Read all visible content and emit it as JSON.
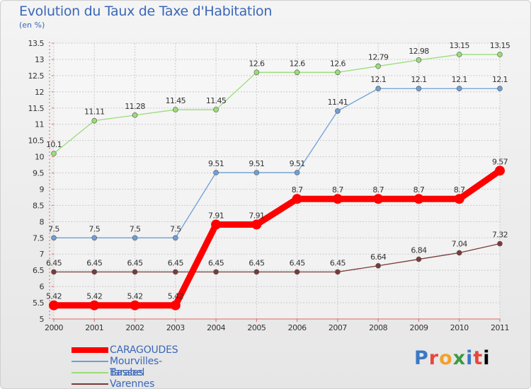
{
  "header": {
    "title": "Evolution du Taux de Taxe d'Habitation",
    "subtitle": "(en %)"
  },
  "logo_text": "Proxiti",
  "chart_data": {
    "type": "line",
    "title": "Evolution du Taux de Taxe d'Habitation",
    "ylabel": "(en %)",
    "xlabel": "",
    "ylim": [
      5,
      13.5
    ],
    "yticks": [
      5,
      5.5,
      6,
      6.5,
      7,
      7.5,
      8,
      8.5,
      9,
      9.5,
      10,
      10.5,
      11,
      11.5,
      12,
      12.5,
      13,
      13.5
    ],
    "ytick_labels": [
      "5",
      "5.5",
      "6",
      "6.5",
      "7",
      "7.5",
      "8",
      "8.5",
      "9",
      "9.5",
      "10",
      "10.5",
      "11",
      "11.5",
      "12",
      "12.5",
      "13",
      "13.5"
    ],
    "categories": [
      "2000",
      "2001",
      "2002",
      "2003",
      "2004",
      "2005",
      "2006",
      "2007",
      "2008",
      "2009",
      "2010",
      "2011"
    ],
    "grid": true,
    "legend_placement": "bottom-left",
    "series": [
      {
        "name": "CARAGOUDES",
        "color": "#ff0000",
        "values": [
          5.42,
          5.42,
          5.42,
          5.42,
          7.91,
          7.91,
          8.7,
          8.7,
          8.7,
          8.7,
          8.7,
          9.57
        ],
        "labels": [
          "5.42",
          "5.42",
          "5.42",
          "5.42",
          "7.91",
          "7.91",
          "8.7",
          "8.7",
          "8.7",
          "8.7",
          "8.7",
          "9.57"
        ]
      },
      {
        "name": "Mourvilles-Basses",
        "color": "#6f9fd5",
        "values": [
          7.5,
          7.5,
          7.5,
          7.5,
          9.51,
          9.51,
          9.51,
          11.41,
          12.1,
          12.1,
          12.1,
          12.1
        ],
        "labels": [
          "7.5",
          "7.5",
          "7.5",
          "7.5",
          "9.51",
          "9.51",
          "9.51",
          "11.41",
          "12.1",
          "12.1",
          "12.1",
          "12.1"
        ]
      },
      {
        "name": "Tarabel",
        "color": "#99dd77",
        "values": [
          10.1,
          11.11,
          11.28,
          11.45,
          11.45,
          12.6,
          12.6,
          12.6,
          12.79,
          12.98,
          13.15,
          13.15
        ],
        "labels": [
          "10.1",
          "11.11",
          "11.28",
          "11.45",
          "11.45",
          "12.6",
          "12.6",
          "12.6",
          "12.79",
          "12.98",
          "13.15",
          "13.15"
        ]
      },
      {
        "name": "Varennes",
        "color": "#7a3a3a",
        "values": [
          6.45,
          6.45,
          6.45,
          6.45,
          6.45,
          6.45,
          6.45,
          6.45,
          6.64,
          6.84,
          7.04,
          7.32
        ],
        "labels": [
          "6.45",
          "6.45",
          "6.45",
          "6.45",
          "6.45",
          "6.45",
          "6.45",
          "6.45",
          "6.64",
          "6.84",
          "7.04",
          "7.32"
        ]
      }
    ]
  }
}
